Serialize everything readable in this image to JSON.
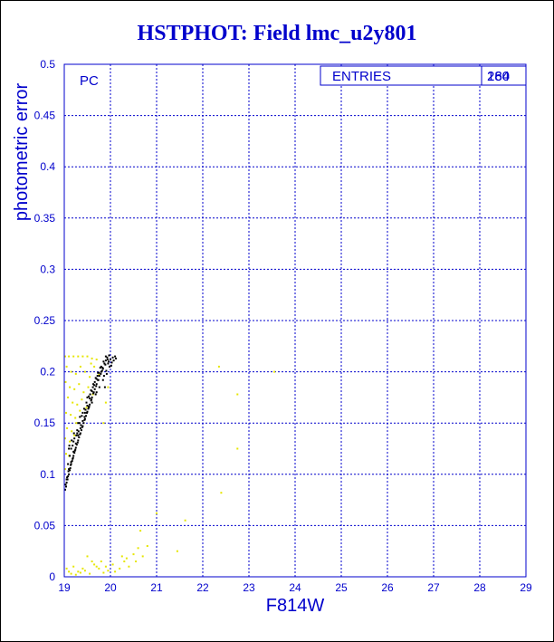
{
  "chart_data": {
    "type": "scatter",
    "title": "HSTPHOT: Field lmc_u2y801",
    "xlabel": "F814W",
    "ylabel": "photometric error",
    "xlim": [
      19,
      29
    ],
    "ylim": [
      0,
      0.5
    ],
    "xticks": [
      19,
      20,
      21,
      22,
      23,
      24,
      25,
      26,
      27,
      28,
      29
    ],
    "yticks": [
      0,
      0.05,
      0.1,
      0.15,
      0.2,
      0.25,
      0.3,
      0.35,
      0.4,
      0.45,
      0.5
    ],
    "ytick_labels": [
      "0",
      "0.05",
      "0.1",
      "0.15",
      "0.2",
      "0.25",
      "0.3",
      "0.35",
      "0.4",
      "0.45",
      "0.5"
    ],
    "grid": true,
    "panel_label": "PC",
    "stats_box": {
      "label": "ENTRIES",
      "value": "280",
      "overlay_value": "164"
    },
    "colors": {
      "text": "#0000cc",
      "grid": "#0000cc",
      "series_black": "#000000",
      "series_yellow": "#e6e600"
    },
    "series": [
      {
        "color": "black",
        "points": [
          [
            19.02,
            0.085
          ],
          [
            19.04,
            0.088
          ],
          [
            19.05,
            0.092
          ],
          [
            19.07,
            0.095
          ],
          [
            19.08,
            0.098
          ],
          [
            19.1,
            0.1
          ],
          [
            19.12,
            0.104
          ],
          [
            19.13,
            0.106
          ],
          [
            19.15,
            0.11
          ],
          [
            19.17,
            0.113
          ],
          [
            19.18,
            0.115
          ],
          [
            19.2,
            0.118
          ],
          [
            19.22,
            0.121
          ],
          [
            19.24,
            0.124
          ],
          [
            19.25,
            0.126
          ],
          [
            19.27,
            0.129
          ],
          [
            19.3,
            0.133
          ],
          [
            19.32,
            0.136
          ],
          [
            19.35,
            0.14
          ],
          [
            19.37,
            0.143
          ],
          [
            19.4,
            0.147
          ],
          [
            19.42,
            0.15
          ],
          [
            19.45,
            0.154
          ],
          [
            19.47,
            0.157
          ],
          [
            19.5,
            0.161
          ],
          [
            19.53,
            0.165
          ],
          [
            19.55,
            0.168
          ],
          [
            19.58,
            0.172
          ],
          [
            19.6,
            0.175
          ],
          [
            19.63,
            0.179
          ],
          [
            19.66,
            0.183
          ],
          [
            19.7,
            0.188
          ],
          [
            19.73,
            0.192
          ],
          [
            19.76,
            0.196
          ],
          [
            19.8,
            0.2
          ],
          [
            19.83,
            0.204
          ],
          [
            19.87,
            0.208
          ],
          [
            19.9,
            0.211
          ],
          [
            19.93,
            0.214
          ],
          [
            19.96,
            0.21
          ],
          [
            20.0,
            0.212
          ],
          [
            20.05,
            0.214
          ],
          [
            20.1,
            0.215
          ],
          [
            20.03,
            0.209
          ],
          [
            19.98,
            0.205
          ],
          [
            19.05,
            0.095
          ],
          [
            19.1,
            0.105
          ],
          [
            19.15,
            0.112
          ],
          [
            19.2,
            0.122
          ],
          [
            19.25,
            0.13
          ],
          [
            19.3,
            0.138
          ],
          [
            19.35,
            0.145
          ],
          [
            19.4,
            0.152
          ],
          [
            19.45,
            0.16
          ],
          [
            19.5,
            0.167
          ],
          [
            19.55,
            0.174
          ],
          [
            19.6,
            0.181
          ],
          [
            19.65,
            0.187
          ],
          [
            19.7,
            0.193
          ],
          [
            19.75,
            0.199
          ],
          [
            19.8,
            0.205
          ],
          [
            19.85,
            0.21
          ],
          [
            19.9,
            0.215
          ],
          [
            19.08,
            0.11
          ],
          [
            19.12,
            0.118
          ],
          [
            19.18,
            0.128
          ],
          [
            19.22,
            0.135
          ],
          [
            19.28,
            0.143
          ],
          [
            19.33,
            0.15
          ],
          [
            19.38,
            0.157
          ],
          [
            19.43,
            0.164
          ],
          [
            19.48,
            0.17
          ],
          [
            19.53,
            0.176
          ],
          [
            19.58,
            0.182
          ],
          [
            19.63,
            0.188
          ],
          [
            19.68,
            0.194
          ],
          [
            19.73,
            0.199
          ],
          [
            19.78,
            0.204
          ],
          [
            19.15,
            0.125
          ],
          [
            19.2,
            0.132
          ],
          [
            19.28,
            0.14
          ],
          [
            19.36,
            0.148
          ],
          [
            19.44,
            0.156
          ],
          [
            19.52,
            0.164
          ],
          [
            19.6,
            0.17
          ],
          [
            19.68,
            0.178
          ],
          [
            19.76,
            0.185
          ],
          [
            19.84,
            0.192
          ],
          [
            19.92,
            0.198
          ],
          [
            19.1,
            0.125
          ],
          [
            19.3,
            0.15
          ],
          [
            19.5,
            0.175
          ],
          [
            19.7,
            0.18
          ],
          [
            19.88,
            0.185
          ],
          [
            19.03,
            0.09
          ],
          [
            19.06,
            0.097
          ],
          [
            19.09,
            0.103
          ],
          [
            19.14,
            0.109
          ],
          [
            19.19,
            0.116
          ],
          [
            19.23,
            0.123
          ],
          [
            19.29,
            0.131
          ],
          [
            19.34,
            0.139
          ],
          [
            19.39,
            0.146
          ],
          [
            19.44,
            0.153
          ],
          [
            19.49,
            0.16
          ],
          [
            19.54,
            0.166
          ],
          [
            19.59,
            0.173
          ],
          [
            19.64,
            0.18
          ],
          [
            19.69,
            0.186
          ],
          [
            19.74,
            0.192
          ],
          [
            19.79,
            0.198
          ],
          [
            19.84,
            0.203
          ],
          [
            19.89,
            0.207
          ],
          [
            19.94,
            0.212
          ],
          [
            19.97,
            0.216
          ],
          [
            20.02,
            0.206
          ],
          [
            20.07,
            0.211
          ],
          [
            20.12,
            0.213
          ],
          [
            19.26,
            0.138
          ],
          [
            19.31,
            0.142
          ],
          [
            19.46,
            0.163
          ],
          [
            19.56,
            0.178
          ],
          [
            19.66,
            0.19
          ],
          [
            19.86,
            0.196
          ],
          [
            19.91,
            0.201
          ],
          [
            19.95,
            0.208
          ],
          [
            19.4,
            0.16
          ],
          [
            19.34,
            0.156
          ],
          [
            19.21,
            0.14
          ],
          [
            19.16,
            0.133
          ],
          [
            19.11,
            0.128
          ],
          [
            19.62,
            0.185
          ],
          [
            19.72,
            0.196
          ],
          [
            19.82,
            0.201
          ]
        ]
      },
      {
        "color": "yellow",
        "points": [
          [
            19.02,
            0.215
          ],
          [
            19.1,
            0.215
          ],
          [
            19.2,
            0.215
          ],
          [
            19.3,
            0.215
          ],
          [
            19.4,
            0.215
          ],
          [
            19.5,
            0.215
          ],
          [
            19.6,
            0.213
          ],
          [
            19.7,
            0.212
          ],
          [
            19.05,
            0.205
          ],
          [
            19.15,
            0.2
          ],
          [
            19.25,
            0.198
          ],
          [
            19.35,
            0.205
          ],
          [
            19.45,
            0.2
          ],
          [
            19.55,
            0.195
          ],
          [
            19.65,
            0.205
          ],
          [
            19.75,
            0.197
          ],
          [
            19.03,
            0.19
          ],
          [
            19.12,
            0.185
          ],
          [
            19.22,
            0.183
          ],
          [
            19.32,
            0.188
          ],
          [
            19.42,
            0.18
          ],
          [
            19.52,
            0.185
          ],
          [
            19.62,
            0.178
          ],
          [
            19.08,
            0.175
          ],
          [
            19.18,
            0.17
          ],
          [
            19.28,
            0.168
          ],
          [
            19.38,
            0.173
          ],
          [
            19.48,
            0.165
          ],
          [
            19.04,
            0.16
          ],
          [
            19.14,
            0.158
          ],
          [
            19.24,
            0.155
          ],
          [
            19.34,
            0.162
          ],
          [
            19.06,
            0.145
          ],
          [
            19.16,
            0.142
          ],
          [
            19.26,
            0.15
          ],
          [
            19.02,
            0.135
          ],
          [
            19.12,
            0.132
          ],
          [
            19.22,
            0.138
          ],
          [
            19.04,
            0.12
          ],
          [
            19.1,
            0.118
          ],
          [
            19.02,
            0.105
          ],
          [
            19.85,
            0.15
          ],
          [
            19.9,
            0.17
          ],
          [
            19.95,
            0.185
          ],
          [
            19.58,
            0.208
          ],
          [
            22.35,
            0.205
          ],
          [
            22.75,
            0.178
          ],
          [
            23.55,
            0.2
          ],
          [
            22.75,
            0.125
          ],
          [
            22.4,
            0.082
          ],
          [
            20.65,
            0.045
          ],
          [
            21.45,
            0.025
          ],
          [
            21.0,
            0.062
          ],
          [
            21.62,
            0.055
          ],
          [
            20.5,
            0.022
          ],
          [
            20.55,
            0.015
          ],
          [
            20.6,
            0.028
          ],
          [
            20.7,
            0.02
          ],
          [
            20.4,
            0.01
          ],
          [
            20.3,
            0.015
          ],
          [
            20.2,
            0.008
          ],
          [
            20.1,
            0.005
          ],
          [
            19.9,
            0.01
          ],
          [
            19.8,
            0.015
          ],
          [
            19.7,
            0.01
          ],
          [
            19.6,
            0.015
          ],
          [
            19.5,
            0.02
          ],
          [
            19.4,
            0.008
          ],
          [
            19.3,
            0.005
          ],
          [
            19.2,
            0.01
          ],
          [
            19.1,
            0.005
          ],
          [
            19.05,
            0.008
          ],
          [
            19.15,
            0.003
          ],
          [
            19.25,
            0.002
          ],
          [
            19.35,
            0.004
          ],
          [
            19.45,
            0.006
          ],
          [
            19.55,
            0.003
          ],
          [
            19.65,
            0.012
          ],
          [
            19.75,
            0.008
          ],
          [
            19.85,
            0.004
          ],
          [
            19.95,
            0.006
          ],
          [
            20.05,
            0.012
          ],
          [
            20.25,
            0.02
          ],
          [
            20.35,
            0.018
          ],
          [
            20.8,
            0.03
          ]
        ]
      }
    ]
  }
}
